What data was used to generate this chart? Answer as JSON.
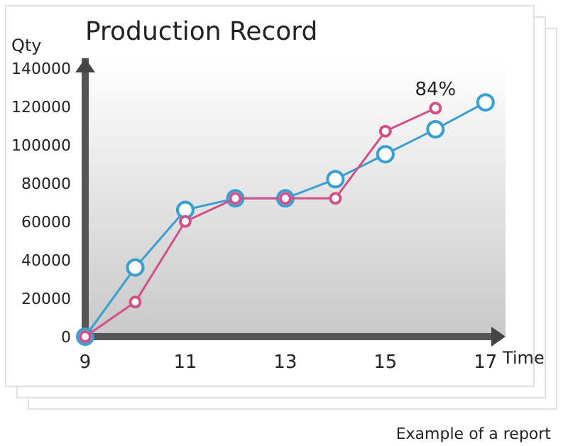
{
  "chart_data": {
    "type": "line",
    "title": "Production Record",
    "xlabel": "Time",
    "ylabel": "Qty",
    "x": [
      9,
      10,
      11,
      12,
      13,
      14,
      15,
      16,
      17
    ],
    "series": [
      {
        "color": "#3a9fd0",
        "values": [
          0,
          36000,
          66000,
          72000,
          72000,
          82000,
          95000,
          108000,
          122000
        ]
      },
      {
        "color": "#d0508a",
        "values": [
          0,
          18000,
          60000,
          72000,
          72000,
          72000,
          107000,
          119000,
          null
        ]
      }
    ],
    "xlim": [
      9,
      17.4
    ],
    "ylim": [
      0,
      145000
    ],
    "xticks": [
      9,
      11,
      13,
      15,
      17
    ],
    "yticks": [
      0,
      20000,
      40000,
      60000,
      80000,
      100000,
      120000,
      140000
    ],
    "marker": "circle",
    "line_style": "solid",
    "grid": false,
    "annotations": [
      {
        "text": "84%",
        "x": 16,
        "y": 119000
      },
      "Example of a report"
    ]
  }
}
